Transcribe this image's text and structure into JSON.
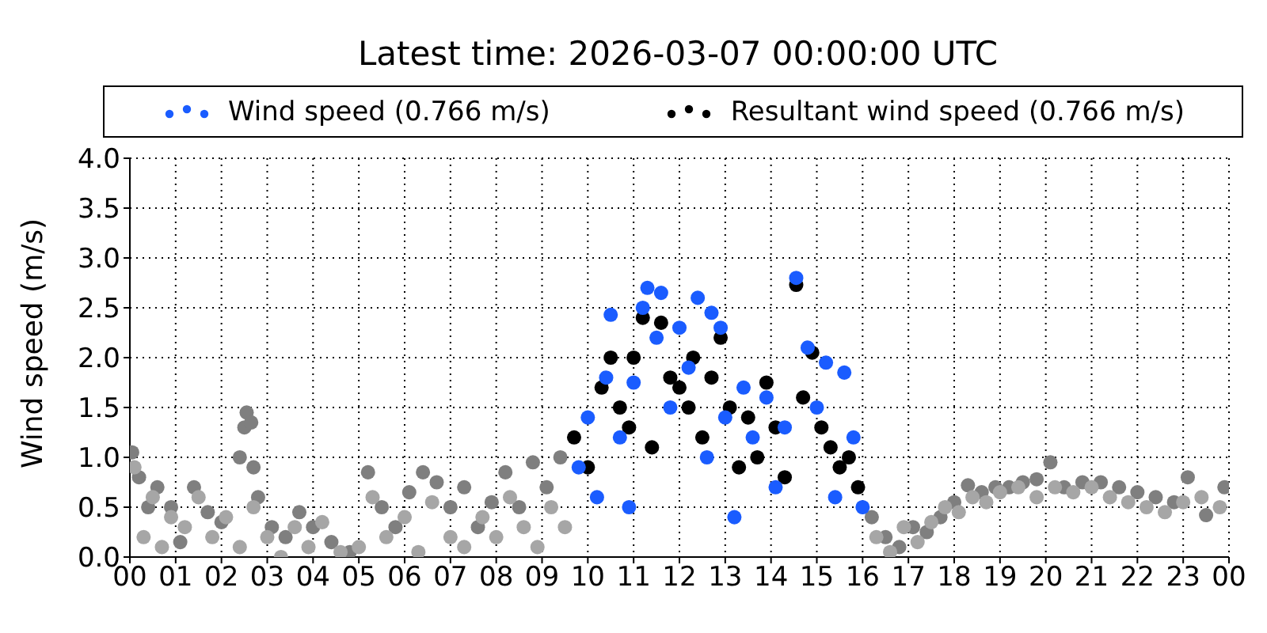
{
  "chart_data": {
    "type": "scatter",
    "title": "Latest time: 2026-03-07 00:00:00 UTC",
    "ylabel": "Wind speed (m/s)",
    "xlim": [
      0,
      24
    ],
    "xticks": [
      {
        "value": 0,
        "label": "00"
      },
      {
        "value": 1,
        "label": "01"
      },
      {
        "value": 2,
        "label": "02"
      },
      {
        "value": 3,
        "label": "03"
      },
      {
        "value": 4,
        "label": "04"
      },
      {
        "value": 5,
        "label": "05"
      },
      {
        "value": 6,
        "label": "06"
      },
      {
        "value": 7,
        "label": "07"
      },
      {
        "value": 8,
        "label": "08"
      },
      {
        "value": 9,
        "label": "09"
      },
      {
        "value": 10,
        "label": "10"
      },
      {
        "value": 11,
        "label": "11"
      },
      {
        "value": 12,
        "label": "12"
      },
      {
        "value": 13,
        "label": "13"
      },
      {
        "value": 14,
        "label": "14"
      },
      {
        "value": 15,
        "label": "15"
      },
      {
        "value": 16,
        "label": "16"
      },
      {
        "value": 17,
        "label": "17"
      },
      {
        "value": 18,
        "label": "18"
      },
      {
        "value": 19,
        "label": "19"
      },
      {
        "value": 20,
        "label": "20"
      },
      {
        "value": 21,
        "label": "21"
      },
      {
        "value": 22,
        "label": "22"
      },
      {
        "value": 23,
        "label": "23"
      },
      {
        "value": 24,
        "label": "00"
      }
    ],
    "ylim": [
      0,
      4
    ],
    "yticks": [
      {
        "value": 0,
        "label": "0.0"
      },
      {
        "value": 0.5,
        "label": "0.5"
      },
      {
        "value": 1,
        "label": "1.0"
      },
      {
        "value": 1.5,
        "label": "1.5"
      },
      {
        "value": 2,
        "label": "2.0"
      },
      {
        "value": 2.5,
        "label": "2.5"
      },
      {
        "value": 3,
        "label": "3.0"
      },
      {
        "value": 3.5,
        "label": "3.5"
      },
      {
        "value": 4,
        "label": "4.0"
      }
    ],
    "grid": true,
    "legend": "top",
    "marker": "circle",
    "series": [
      {
        "name": "Wind speed (0.766 m/s)",
        "color": "#1a5cff",
        "x": [
          9.8,
          10.0,
          10.2,
          10.4,
          10.5,
          10.7,
          10.9,
          11.0,
          11.2,
          11.3,
          11.5,
          11.6,
          11.8,
          12.0,
          12.2,
          12.4,
          12.6,
          12.7,
          12.9,
          13.0,
          13.2,
          13.4,
          13.6,
          13.9,
          14.1,
          14.3,
          14.55,
          14.8,
          15.0,
          15.2,
          15.4,
          15.6,
          15.8,
          16.0
        ],
        "values": [
          0.9,
          1.4,
          0.6,
          1.8,
          2.43,
          1.2,
          0.5,
          1.75,
          2.5,
          2.7,
          2.2,
          2.65,
          1.5,
          2.3,
          1.9,
          2.6,
          1.0,
          2.45,
          2.3,
          1.4,
          0.4,
          1.7,
          1.2,
          1.6,
          0.7,
          1.3,
          2.8,
          2.1,
          1.5,
          1.95,
          0.6,
          1.85,
          1.2,
          0.5
        ]
      },
      {
        "name": "Resultant wind speed (0.766 m/s)",
        "color": "#000000",
        "x": [
          9.7,
          10.0,
          10.3,
          10.5,
          10.7,
          10.9,
          11.0,
          11.2,
          11.4,
          11.6,
          11.8,
          12.0,
          12.2,
          12.3,
          12.5,
          12.7,
          12.9,
          13.1,
          13.3,
          13.5,
          13.7,
          13.9,
          14.1,
          14.3,
          14.55,
          14.7,
          14.9,
          15.1,
          15.3,
          15.5,
          15.7,
          15.9
        ],
        "values": [
          1.2,
          0.9,
          1.7,
          2.0,
          1.5,
          1.3,
          2.0,
          2.4,
          1.1,
          2.35,
          1.8,
          1.7,
          1.5,
          2.0,
          1.2,
          1.8,
          2.2,
          1.5,
          0.9,
          1.4,
          1.0,
          1.75,
          1.3,
          0.8,
          2.73,
          1.6,
          2.05,
          1.3,
          1.1,
          0.9,
          1.0,
          0.7
        ]
      },
      {
        "color": "#a6a6a6",
        "x": [
          0.1,
          0.3,
          0.5,
          0.7,
          0.9,
          1.2,
          1.5,
          1.8,
          2.1,
          2.4,
          2.7,
          3.0,
          3.3,
          3.6,
          3.9,
          4.2,
          4.6,
          5.0,
          5.3,
          5.6,
          6.0,
          6.3,
          6.6,
          7.0,
          7.3,
          7.7,
          8.0,
          8.3,
          8.6,
          8.9,
          9.2,
          9.5,
          16.3,
          16.6,
          16.9,
          17.2,
          17.5,
          17.8,
          18.1,
          18.4,
          18.7,
          19.0,
          19.4,
          19.8,
          20.2,
          20.6,
          21.0,
          21.4,
          21.8,
          22.2,
          22.6,
          23.0,
          23.4,
          23.8
        ],
        "values": [
          0.9,
          0.2,
          0.6,
          0.1,
          0.4,
          0.3,
          0.6,
          0.2,
          0.4,
          0.1,
          0.5,
          0.2,
          0.0,
          0.3,
          0.1,
          0.35,
          0.05,
          0.1,
          0.6,
          0.2,
          0.4,
          0.05,
          0.55,
          0.2,
          0.1,
          0.4,
          0.2,
          0.6,
          0.3,
          0.1,
          0.5,
          0.3,
          0.2,
          0.05,
          0.3,
          0.15,
          0.35,
          0.5,
          0.45,
          0.6,
          0.55,
          0.65,
          0.7,
          0.6,
          0.7,
          0.65,
          0.7,
          0.6,
          0.55,
          0.5,
          0.45,
          0.55,
          0.6,
          0.5
        ]
      },
      {
        "color": "#7f7f7f",
        "x": [
          0.05,
          0.2,
          0.4,
          0.6,
          0.9,
          1.1,
          1.4,
          1.7,
          2.0,
          2.4,
          2.5,
          2.55,
          2.65,
          2.7,
          2.8,
          3.1,
          3.4,
          3.7,
          4.0,
          4.4,
          4.8,
          5.2,
          5.5,
          5.8,
          6.1,
          6.4,
          6.7,
          7.0,
          7.3,
          7.6,
          7.9,
          8.2,
          8.5,
          8.8,
          9.1,
          9.4,
          16.2,
          16.5,
          16.8,
          17.1,
          17.4,
          17.7,
          18.0,
          18.3,
          18.6,
          18.9,
          19.2,
          19.5,
          19.8,
          20.1,
          20.4,
          20.8,
          21.2,
          21.6,
          22.0,
          22.4,
          22.8,
          23.1,
          23.5,
          23.9
        ],
        "values": [
          1.05,
          0.8,
          0.5,
          0.7,
          0.5,
          0.15,
          0.7,
          0.45,
          0.35,
          1.0,
          1.3,
          1.45,
          1.35,
          0.9,
          0.6,
          0.3,
          0.2,
          0.45,
          0.3,
          0.15,
          0.05,
          0.85,
          0.5,
          0.3,
          0.65,
          0.85,
          0.75,
          0.5,
          0.7,
          0.3,
          0.55,
          0.85,
          0.5,
          0.95,
          0.7,
          1.0,
          0.4,
          0.2,
          0.1,
          0.3,
          0.25,
          0.4,
          0.55,
          0.72,
          0.65,
          0.7,
          0.7,
          0.75,
          0.78,
          0.95,
          0.7,
          0.75,
          0.75,
          0.7,
          0.65,
          0.6,
          0.55,
          0.8,
          0.42,
          0.7
        ]
      }
    ]
  }
}
